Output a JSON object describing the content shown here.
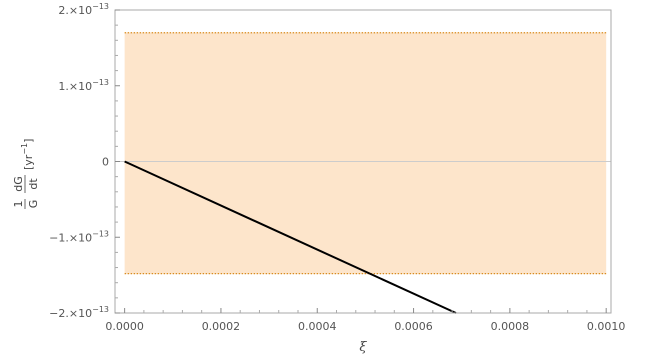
{
  "chart_data": {
    "type": "line",
    "title": "",
    "xlabel": "ξ",
    "ylabel": {
      "frac_top": "1",
      "frac_bottom": "G",
      "dG": "dG",
      "dt": "dt",
      "unit": "[yr",
      "unit_exp": "−1",
      "unit_close": "]"
    },
    "xlim": [
      -2e-05,
      0.00101
    ],
    "ylim": [
      -2e-13,
      2e-13
    ],
    "x_ticks": [
      {
        "value": 0.0,
        "label": "0.0000"
      },
      {
        "value": 0.0002,
        "label": "0.0002"
      },
      {
        "value": 0.0004,
        "label": "0.0004"
      },
      {
        "value": 0.0006,
        "label": "0.0006"
      },
      {
        "value": 0.0008,
        "label": "0.0008"
      },
      {
        "value": 0.001,
        "label": "0.0010"
      }
    ],
    "y_ticks": [
      {
        "value": 2e-13,
        "mantissa": "2.×10",
        "exp": "−13"
      },
      {
        "value": 1e-13,
        "mantissa": "1.×10",
        "exp": "−13"
      },
      {
        "value": 0.0,
        "mantissa": "0",
        "exp": ""
      },
      {
        "value": -1e-13,
        "mantissa": "−1.×10",
        "exp": "−13"
      },
      {
        "value": -2e-13,
        "mantissa": "−2.×10",
        "exp": "−13"
      }
    ],
    "band": {
      "x": [
        0.0,
        0.001
      ],
      "y_low": -1.48e-13,
      "y_high": 1.7e-13,
      "color": "#fde5cb",
      "bound_color": "#d98b1e"
    },
    "series": [
      {
        "x": [
          0.0,
          0.000688
        ],
        "y": [
          0.0,
          -2e-13
        ],
        "color": "#000000"
      }
    ],
    "grid": false
  }
}
